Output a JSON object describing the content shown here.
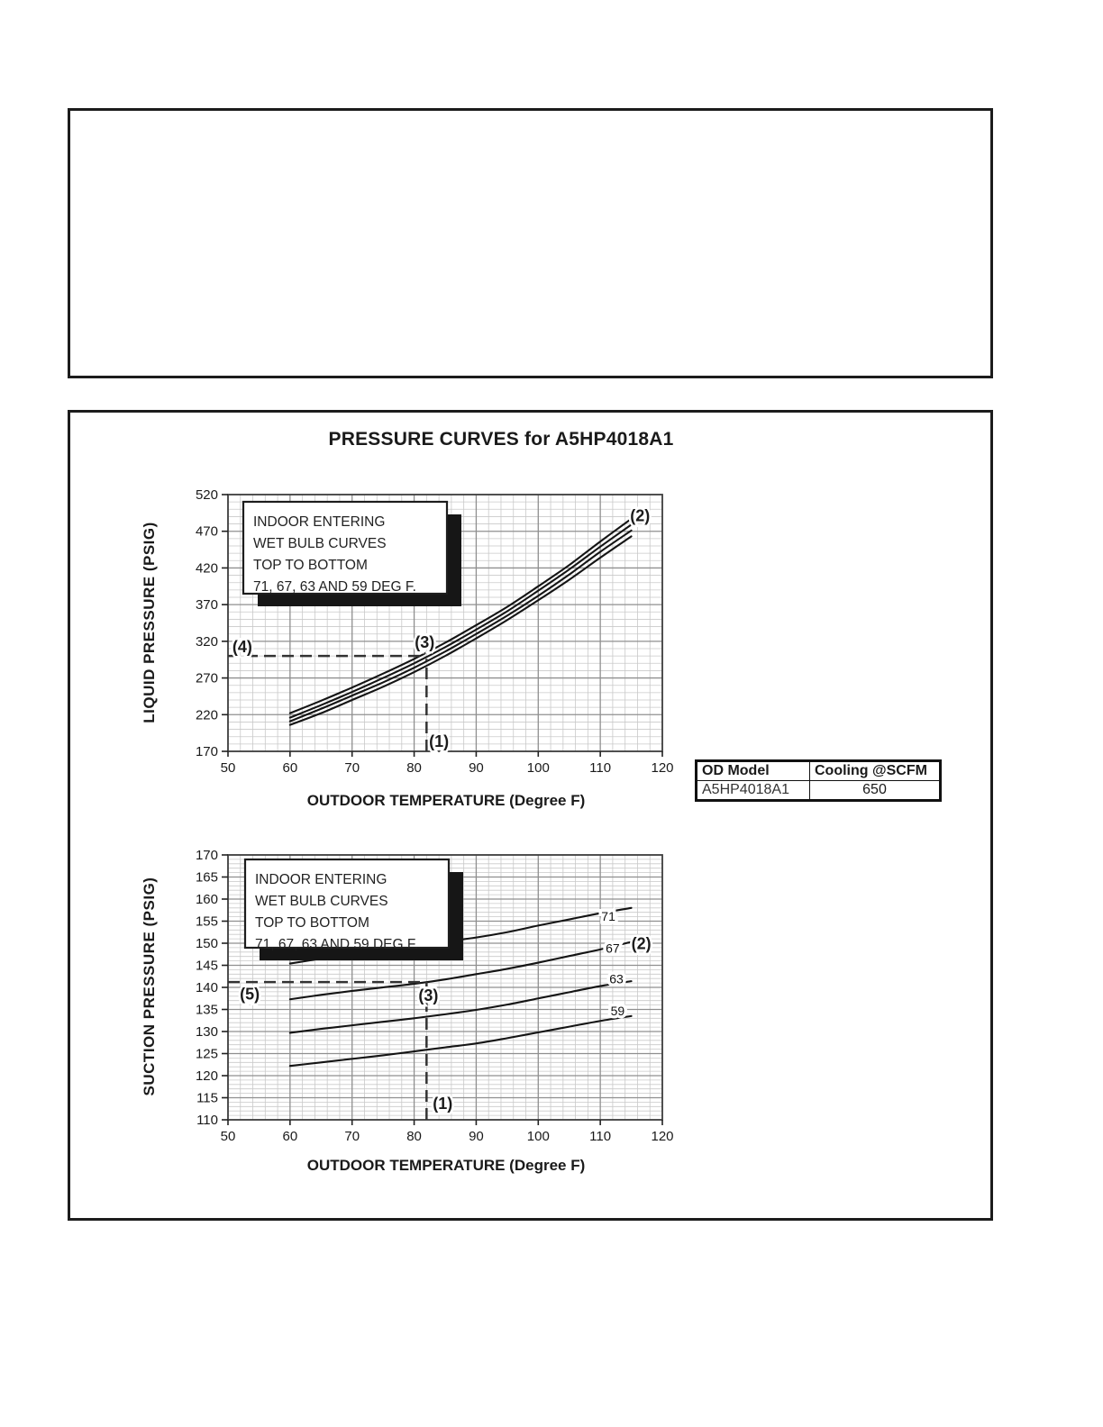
{
  "table": {
    "headers": [
      "OD Model",
      "Cooling @SCFM"
    ],
    "rows": [
      [
        "A5HP4018A1",
        "650"
      ]
    ]
  },
  "colors": {
    "curve": "#141414",
    "grid_minor": "#c9c9c9",
    "grid_major": "#8f8f8f",
    "plot_border": "#404040",
    "dashed_guide": "#333333"
  },
  "chart_data": [
    {
      "type": "line",
      "title": "PRESSURE CURVES for A5HP4018A1",
      "xlabel": "OUTDOOR TEMPERATURE (Degree F)",
      "ylabel": "LIQUID PRESSURE (PSIG)",
      "xlim": [
        50,
        120
      ],
      "ylim": [
        170,
        520
      ],
      "xticks": [
        50,
        60,
        70,
        80,
        90,
        100,
        110,
        120
      ],
      "yticks": [
        170,
        220,
        270,
        320,
        370,
        420,
        470,
        520
      ],
      "x_minor_step": 2,
      "y_minor_step": 10,
      "grid": true,
      "legend_lines": [
        "INDOOR ENTERING",
        "WET BULB CURVES",
        "TOP TO BOTTOM",
        "71, 67, 63 AND 59 DEG F."
      ],
      "x": [
        60,
        65,
        70,
        75,
        80,
        85,
        90,
        95,
        100,
        105,
        110,
        115
      ],
      "series": [
        {
          "name": "71",
          "values": [
            222,
            239,
            257,
            276,
            296,
            318,
            342,
            367,
            395,
            424,
            456,
            487
          ]
        },
        {
          "name": "67",
          "values": [
            216,
            233,
            251,
            270,
            290,
            312,
            336,
            361,
            389,
            418,
            449,
            479
          ]
        },
        {
          "name": "63",
          "values": [
            211,
            228,
            246,
            264,
            284,
            306,
            330,
            355,
            382,
            411,
            442,
            471
          ]
        },
        {
          "name": "59",
          "values": [
            206,
            222,
            240,
            258,
            278,
            300,
            324,
            349,
            376,
            404,
            434,
            463
          ]
        }
      ],
      "guides": {
        "h": {
          "y": 300,
          "x1": 50,
          "x2": 81.3
        },
        "v": {
          "x": 82,
          "y1": 170,
          "y2": 296
        }
      },
      "annotations": [
        {
          "text": "(1)",
          "x": 84.0,
          "y": 176
        },
        {
          "text": "(2)",
          "x": 116.4,
          "y": 484
        },
        {
          "text": "(3)",
          "x": 81.7,
          "y": 311
        },
        {
          "text": "(4)",
          "x": 52.3,
          "y": 305
        }
      ]
    },
    {
      "type": "line",
      "title": "",
      "xlabel": "OUTDOOR TEMPERATURE (Degree F)",
      "ylabel": "SUCTION PRESSURE (PSIG)",
      "xlim": [
        50,
        120
      ],
      "ylim": [
        110,
        170
      ],
      "xticks": [
        50,
        60,
        70,
        80,
        90,
        100,
        110,
        120
      ],
      "yticks": [
        110,
        115,
        120,
        125,
        130,
        135,
        140,
        145,
        150,
        155,
        160,
        165,
        170
      ],
      "x_minor_step": 2,
      "y_minor_step": 1,
      "grid": true,
      "legend_lines": [
        "INDOOR ENTERING",
        "WET BULB CURVES",
        "TOP TO BOTTOM",
        "71, 67, 63 AND 59 DEG F."
      ],
      "x": [
        60,
        65,
        70,
        75,
        80,
        85,
        90,
        95,
        100,
        105,
        110,
        115
      ],
      "series": [
        {
          "name": "71",
          "values": [
            145.4,
            146.5,
            147.6,
            148.6,
            149.6,
            150.4,
            151.3,
            152.5,
            154.0,
            155.4,
            156.8,
            158.0
          ],
          "label_x": 111.3,
          "label_y": 156.1
        },
        {
          "name": "67",
          "values": [
            137.3,
            138.3,
            139.2,
            140.0,
            140.8,
            141.8,
            143.0,
            144.2,
            145.6,
            147.1,
            148.6,
            150.3
          ],
          "label_x": 112.0,
          "label_y": 148.9
        },
        {
          "name": "63",
          "values": [
            129.7,
            130.6,
            131.4,
            132.2,
            133.0,
            133.9,
            134.9,
            136.1,
            137.5,
            138.9,
            140.3,
            141.4
          ],
          "label_x": 112.6,
          "label_y": 141.9
        },
        {
          "name": "59",
          "values": [
            122.2,
            123.0,
            123.8,
            124.6,
            125.5,
            126.4,
            127.3,
            128.5,
            129.8,
            131.1,
            132.4,
            133.5
          ],
          "label_x": 112.8,
          "label_y": 134.7
        }
      ],
      "guides": {
        "h": {
          "y": 141.2,
          "x1": 50,
          "x2": 82
        },
        "v": {
          "x": 82,
          "y1": 110,
          "y2": 141.2
        }
      },
      "annotations": [
        {
          "text": "(1)",
          "x": 84.6,
          "y": 112.4
        },
        {
          "text": "(2)",
          "x": 116.6,
          "y": 148.7
        },
        {
          "text": "(3)",
          "x": 82.3,
          "y": 136.9
        },
        {
          "text": "(5)",
          "x": 53.5,
          "y": 137.2
        }
      ]
    }
  ]
}
